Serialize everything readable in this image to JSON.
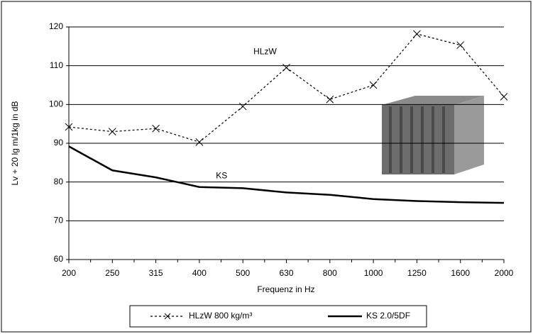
{
  "chart_data": {
    "type": "line",
    "x_label": "Frequenz in Hz",
    "y_label": "Lv + 20 lg m/1kg  in dB",
    "categories": [
      200,
      250,
      315,
      400,
      500,
      630,
      800,
      1000,
      1250,
      1600,
      2000
    ],
    "series": [
      {
        "name": "HLzW 800 kg/m³",
        "color": "#000000",
        "dashed": true,
        "marker": "x",
        "values": [
          94.2,
          93,
          93.8,
          90.3,
          99.5,
          109.5,
          101.3,
          105,
          118.2,
          115.3,
          102
        ]
      },
      {
        "name": "KS 2.0/5DF",
        "color": "#000000",
        "dashed": false,
        "marker": "none",
        "values": [
          89.2,
          83,
          81.2,
          78.7,
          78.4,
          77.3,
          76.7,
          75.6,
          75.1,
          74.8,
          74.6
        ]
      }
    ],
    "annotations": [
      {
        "text": "HLzW",
        "category_index": 5,
        "y": 113.5
      },
      {
        "text": "KS",
        "category_index": 4,
        "y": 81.5
      }
    ],
    "ylim": [
      60,
      120
    ],
    "yticks": [
      60,
      70,
      80,
      90,
      100,
      110,
      120
    ],
    "grid": true,
    "legend": "bottom"
  }
}
